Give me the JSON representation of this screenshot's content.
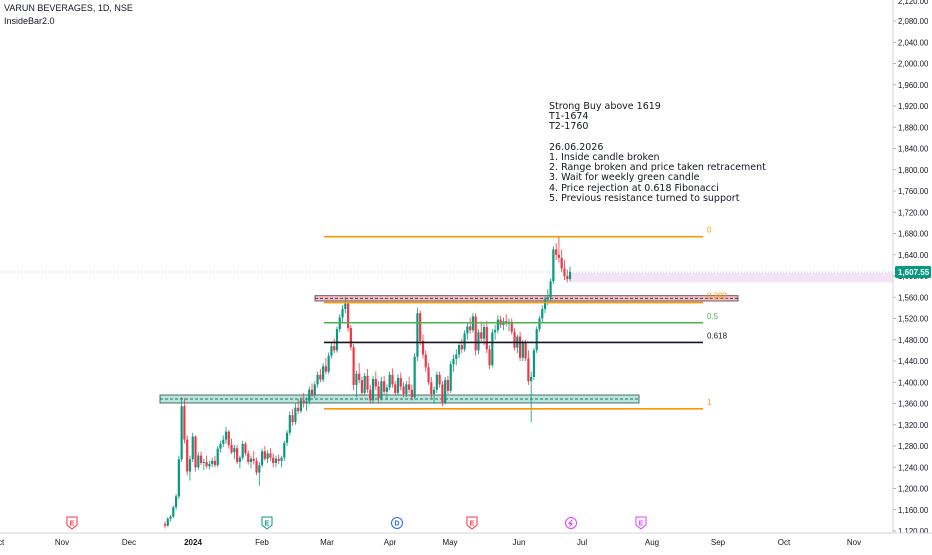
{
  "header": {
    "title": "VARUN BEVERAGES, 1D, NSE",
    "indicator": "InsideBar2.0"
  },
  "notes": {
    "lines": [
      "Strong Buy above 1619",
      "T1-1674",
      "T2-1760",
      "",
      "26.06.2026",
      "1. Inside candle broken",
      "2. Range broken and price taken retracement",
      "3. Wait for weekly green candle",
      "4. Price rejection at 0.618 Fibonacci",
      "5. Previous resistance turned to support"
    ]
  },
  "colors": {
    "up": "#089981",
    "down": "#f23645",
    "fib_orange": "#ff9800",
    "fib_green": "#4caf50",
    "fib_black": "#131722",
    "zone_teal": "#9be0d3",
    "zone_red": "#f7a8b8",
    "highlight": "#f3e0f5",
    "price_tag": "#089981"
  },
  "chart_data": {
    "type": "candlestick",
    "title": "VARUN BEVERAGES, 1D, NSE",
    "y_axis": {
      "ticks": [
        "2,080.00",
        "2,040.00",
        "2,000.00",
        "1,960.00",
        "1,920.00",
        "1,880.00",
        "1,840.00",
        "1,800.00",
        "1,760.00",
        "1,720.00",
        "1,680.00",
        "1,640.00",
        "1,600.00",
        "1,560.00",
        "1,520.00",
        "1,480.00",
        "1,440.00",
        "1,400.00",
        "1,360.00",
        "1,320.00",
        "1,280.00",
        "1,240.00",
        "1,200.00",
        "1,160.00",
        "1,120.00"
      ],
      "partial_top_tick": "2,120.00",
      "range": [
        1112,
        2123
      ]
    },
    "x_axis": {
      "ticks": [
        "Oct",
        "Nov",
        "Dec",
        "2024",
        "Feb",
        "Mar",
        "Apr",
        "May",
        "Jun",
        "Jul",
        "Aug",
        "Sep",
        "Oct",
        "Nov"
      ]
    },
    "last_price": "1,607.55",
    "fibonacci": [
      {
        "level": "0",
        "price": 1674,
        "color": "#ff9800"
      },
      {
        "level": "0.382",
        "price": 1550,
        "color": "#ff9800"
      },
      {
        "level": "0.5",
        "price": 1512,
        "color": "#4caf50"
      },
      {
        "level": "0.618",
        "price": 1475,
        "color": "#131722"
      },
      {
        "level": "1",
        "price": 1350,
        "color": "#ff9800"
      }
    ],
    "zones": [
      {
        "name": "support-zone",
        "low": 1361,
        "high": 1376,
        "color": "#9be0d3"
      },
      {
        "name": "resistance-zone",
        "low": 1553,
        "high": 1563,
        "color": "#f7a8b8"
      },
      {
        "name": "price-highlight",
        "low": 1588,
        "high": 1606,
        "color": "#f3e0f5"
      }
    ],
    "events": [
      {
        "label": "E",
        "type": "earnings"
      },
      {
        "label": "E",
        "type": "earnings"
      },
      {
        "label": "D",
        "type": "dividend"
      },
      {
        "label": "E",
        "type": "earnings"
      },
      {
        "label": "",
        "type": "split"
      },
      {
        "label": "E",
        "type": "earnings"
      }
    ],
    "ohlc": [
      [
        1133,
        1138,
        1125,
        1130
      ],
      [
        1130,
        1146,
        1128,
        1143
      ],
      [
        1143,
        1150,
        1138,
        1147
      ],
      [
        1147,
        1168,
        1145,
        1165
      ],
      [
        1165,
        1190,
        1160,
        1185
      ],
      [
        1185,
        1262,
        1180,
        1255
      ],
      [
        1255,
        1372,
        1250,
        1355
      ],
      [
        1355,
        1370,
        1285,
        1292
      ],
      [
        1292,
        1300,
        1225,
        1232
      ],
      [
        1232,
        1262,
        1215,
        1255
      ],
      [
        1255,
        1305,
        1250,
        1298
      ],
      [
        1298,
        1300,
        1232,
        1240
      ],
      [
        1240,
        1268,
        1235,
        1262
      ],
      [
        1262,
        1270,
        1244,
        1248
      ],
      [
        1248,
        1256,
        1235,
        1250
      ],
      [
        1250,
        1262,
        1238,
        1242
      ],
      [
        1242,
        1252,
        1236,
        1246
      ],
      [
        1246,
        1258,
        1240,
        1252
      ],
      [
        1252,
        1262,
        1240,
        1244
      ],
      [
        1244,
        1280,
        1240,
        1275
      ],
      [
        1275,
        1290,
        1268,
        1284
      ],
      [
        1284,
        1300,
        1278,
        1292
      ],
      [
        1292,
        1316,
        1284,
        1307
      ],
      [
        1307,
        1310,
        1275,
        1282
      ],
      [
        1282,
        1294,
        1265,
        1268
      ],
      [
        1268,
        1282,
        1255,
        1276
      ],
      [
        1276,
        1282,
        1246,
        1250
      ],
      [
        1250,
        1262,
        1238,
        1258
      ],
      [
        1258,
        1290,
        1254,
        1284
      ],
      [
        1284,
        1288,
        1262,
        1266
      ],
      [
        1266,
        1272,
        1245,
        1250
      ],
      [
        1250,
        1262,
        1238,
        1256
      ],
      [
        1256,
        1270,
        1245,
        1252
      ],
      [
        1252,
        1258,
        1225,
        1230
      ],
      [
        1230,
        1250,
        1205,
        1244
      ],
      [
        1244,
        1275,
        1240,
        1270
      ],
      [
        1270,
        1280,
        1252,
        1256
      ],
      [
        1256,
        1272,
        1248,
        1266
      ],
      [
        1266,
        1276,
        1252,
        1258
      ],
      [
        1258,
        1266,
        1240,
        1248
      ],
      [
        1248,
        1262,
        1240,
        1256
      ],
      [
        1256,
        1264,
        1246,
        1252
      ],
      [
        1252,
        1262,
        1240,
        1258
      ],
      [
        1258,
        1290,
        1252,
        1286
      ],
      [
        1286,
        1310,
        1280,
        1305
      ],
      [
        1305,
        1345,
        1300,
        1338
      ],
      [
        1338,
        1350,
        1318,
        1325
      ],
      [
        1325,
        1360,
        1320,
        1352
      ],
      [
        1352,
        1368,
        1340,
        1346
      ],
      [
        1346,
        1372,
        1342,
        1366
      ],
      [
        1366,
        1380,
        1352,
        1360
      ],
      [
        1360,
        1372,
        1346,
        1364
      ],
      [
        1364,
        1392,
        1358,
        1386
      ],
      [
        1386,
        1398,
        1372,
        1376
      ],
      [
        1376,
        1402,
        1370,
        1396
      ],
      [
        1396,
        1420,
        1390,
        1414
      ],
      [
        1414,
        1425,
        1400,
        1405
      ],
      [
        1405,
        1436,
        1400,
        1430
      ],
      [
        1430,
        1446,
        1415,
        1420
      ],
      [
        1420,
        1456,
        1416,
        1450
      ],
      [
        1450,
        1475,
        1445,
        1468
      ],
      [
        1468,
        1482,
        1455,
        1460
      ],
      [
        1460,
        1505,
        1456,
        1500
      ],
      [
        1500,
        1528,
        1494,
        1522
      ],
      [
        1522,
        1545,
        1512,
        1538
      ],
      [
        1538,
        1560,
        1530,
        1548
      ],
      [
        1548,
        1550,
        1495,
        1502
      ],
      [
        1502,
        1508,
        1460,
        1466
      ],
      [
        1466,
        1472,
        1385,
        1395
      ],
      [
        1395,
        1422,
        1372,
        1416
      ],
      [
        1416,
        1436,
        1398,
        1404
      ],
      [
        1404,
        1410,
        1375,
        1380
      ],
      [
        1380,
        1418,
        1376,
        1412
      ],
      [
        1412,
        1425,
        1380,
        1386
      ],
      [
        1386,
        1395,
        1360,
        1366
      ],
      [
        1366,
        1412,
        1362,
        1406
      ],
      [
        1406,
        1420,
        1385,
        1392
      ],
      [
        1392,
        1402,
        1362,
        1370
      ],
      [
        1370,
        1410,
        1366,
        1402
      ],
      [
        1402,
        1412,
        1376,
        1382
      ],
      [
        1382,
        1396,
        1368,
        1390
      ],
      [
        1390,
        1420,
        1385,
        1414
      ],
      [
        1414,
        1426,
        1390,
        1396
      ],
      [
        1396,
        1402,
        1375,
        1380
      ],
      [
        1380,
        1415,
        1376,
        1408
      ],
      [
        1408,
        1418,
        1385,
        1392
      ],
      [
        1392,
        1400,
        1372,
        1378
      ],
      [
        1378,
        1402,
        1372,
        1396
      ],
      [
        1396,
        1410,
        1380,
        1386
      ],
      [
        1386,
        1396,
        1366,
        1372
      ],
      [
        1372,
        1455,
        1368,
        1448
      ],
      [
        1448,
        1540,
        1440,
        1530
      ],
      [
        1530,
        1535,
        1470,
        1478
      ],
      [
        1478,
        1490,
        1445,
        1452
      ],
      [
        1452,
        1460,
        1420,
        1428
      ],
      [
        1428,
        1436,
        1395,
        1400
      ],
      [
        1400,
        1410,
        1370,
        1378
      ],
      [
        1378,
        1392,
        1360,
        1386
      ],
      [
        1386,
        1420,
        1380,
        1414
      ],
      [
        1414,
        1420,
        1390,
        1396
      ],
      [
        1396,
        1402,
        1355,
        1362
      ],
      [
        1362,
        1410,
        1358,
        1404
      ],
      [
        1404,
        1412,
        1378,
        1384
      ],
      [
        1384,
        1440,
        1380,
        1434
      ],
      [
        1434,
        1452,
        1420,
        1444
      ],
      [
        1444,
        1462,
        1432,
        1452
      ],
      [
        1452,
        1476,
        1445,
        1470
      ],
      [
        1470,
        1482,
        1455,
        1462
      ],
      [
        1462,
        1498,
        1458,
        1492
      ],
      [
        1492,
        1512,
        1480,
        1505
      ],
      [
        1505,
        1522,
        1492,
        1498
      ],
      [
        1498,
        1530,
        1494,
        1524
      ],
      [
        1524,
        1530,
        1450,
        1460
      ],
      [
        1460,
        1500,
        1452,
        1494
      ],
      [
        1494,
        1512,
        1476,
        1482
      ],
      [
        1482,
        1510,
        1470,
        1504
      ],
      [
        1504,
        1515,
        1455,
        1462
      ],
      [
        1462,
        1470,
        1425,
        1432
      ],
      [
        1432,
        1500,
        1428,
        1494
      ],
      [
        1494,
        1508,
        1480,
        1498
      ],
      [
        1498,
        1526,
        1492,
        1518
      ],
      [
        1518,
        1525,
        1502,
        1508
      ],
      [
        1508,
        1522,
        1498,
        1515
      ],
      [
        1515,
        1528,
        1505,
        1510
      ],
      [
        1510,
        1520,
        1496,
        1514
      ],
      [
        1514,
        1520,
        1490,
        1495
      ],
      [
        1495,
        1502,
        1460,
        1465
      ],
      [
        1465,
        1490,
        1455,
        1486
      ],
      [
        1486,
        1495,
        1440,
        1446
      ],
      [
        1446,
        1480,
        1440,
        1474
      ],
      [
        1474,
        1480,
        1440,
        1445
      ],
      [
        1445,
        1460,
        1395,
        1402
      ],
      [
        1402,
        1420,
        1325,
        1410
      ],
      [
        1410,
        1465,
        1405,
        1460
      ],
      [
        1460,
        1505,
        1455,
        1500
      ],
      [
        1500,
        1525,
        1495,
        1520
      ],
      [
        1520,
        1545,
        1512,
        1538
      ],
      [
        1538,
        1562,
        1530,
        1556
      ],
      [
        1556,
        1575,
        1545,
        1560
      ],
      [
        1560,
        1595,
        1554,
        1590
      ],
      [
        1590,
        1656,
        1585,
        1650
      ],
      [
        1650,
        1662,
        1630,
        1640
      ],
      [
        1640,
        1675,
        1625,
        1634
      ],
      [
        1634,
        1650,
        1608,
        1614
      ],
      [
        1614,
        1630,
        1592,
        1600
      ],
      [
        1600,
        1612,
        1588,
        1594
      ],
      [
        1594,
        1618,
        1590,
        1608
      ]
    ]
  }
}
